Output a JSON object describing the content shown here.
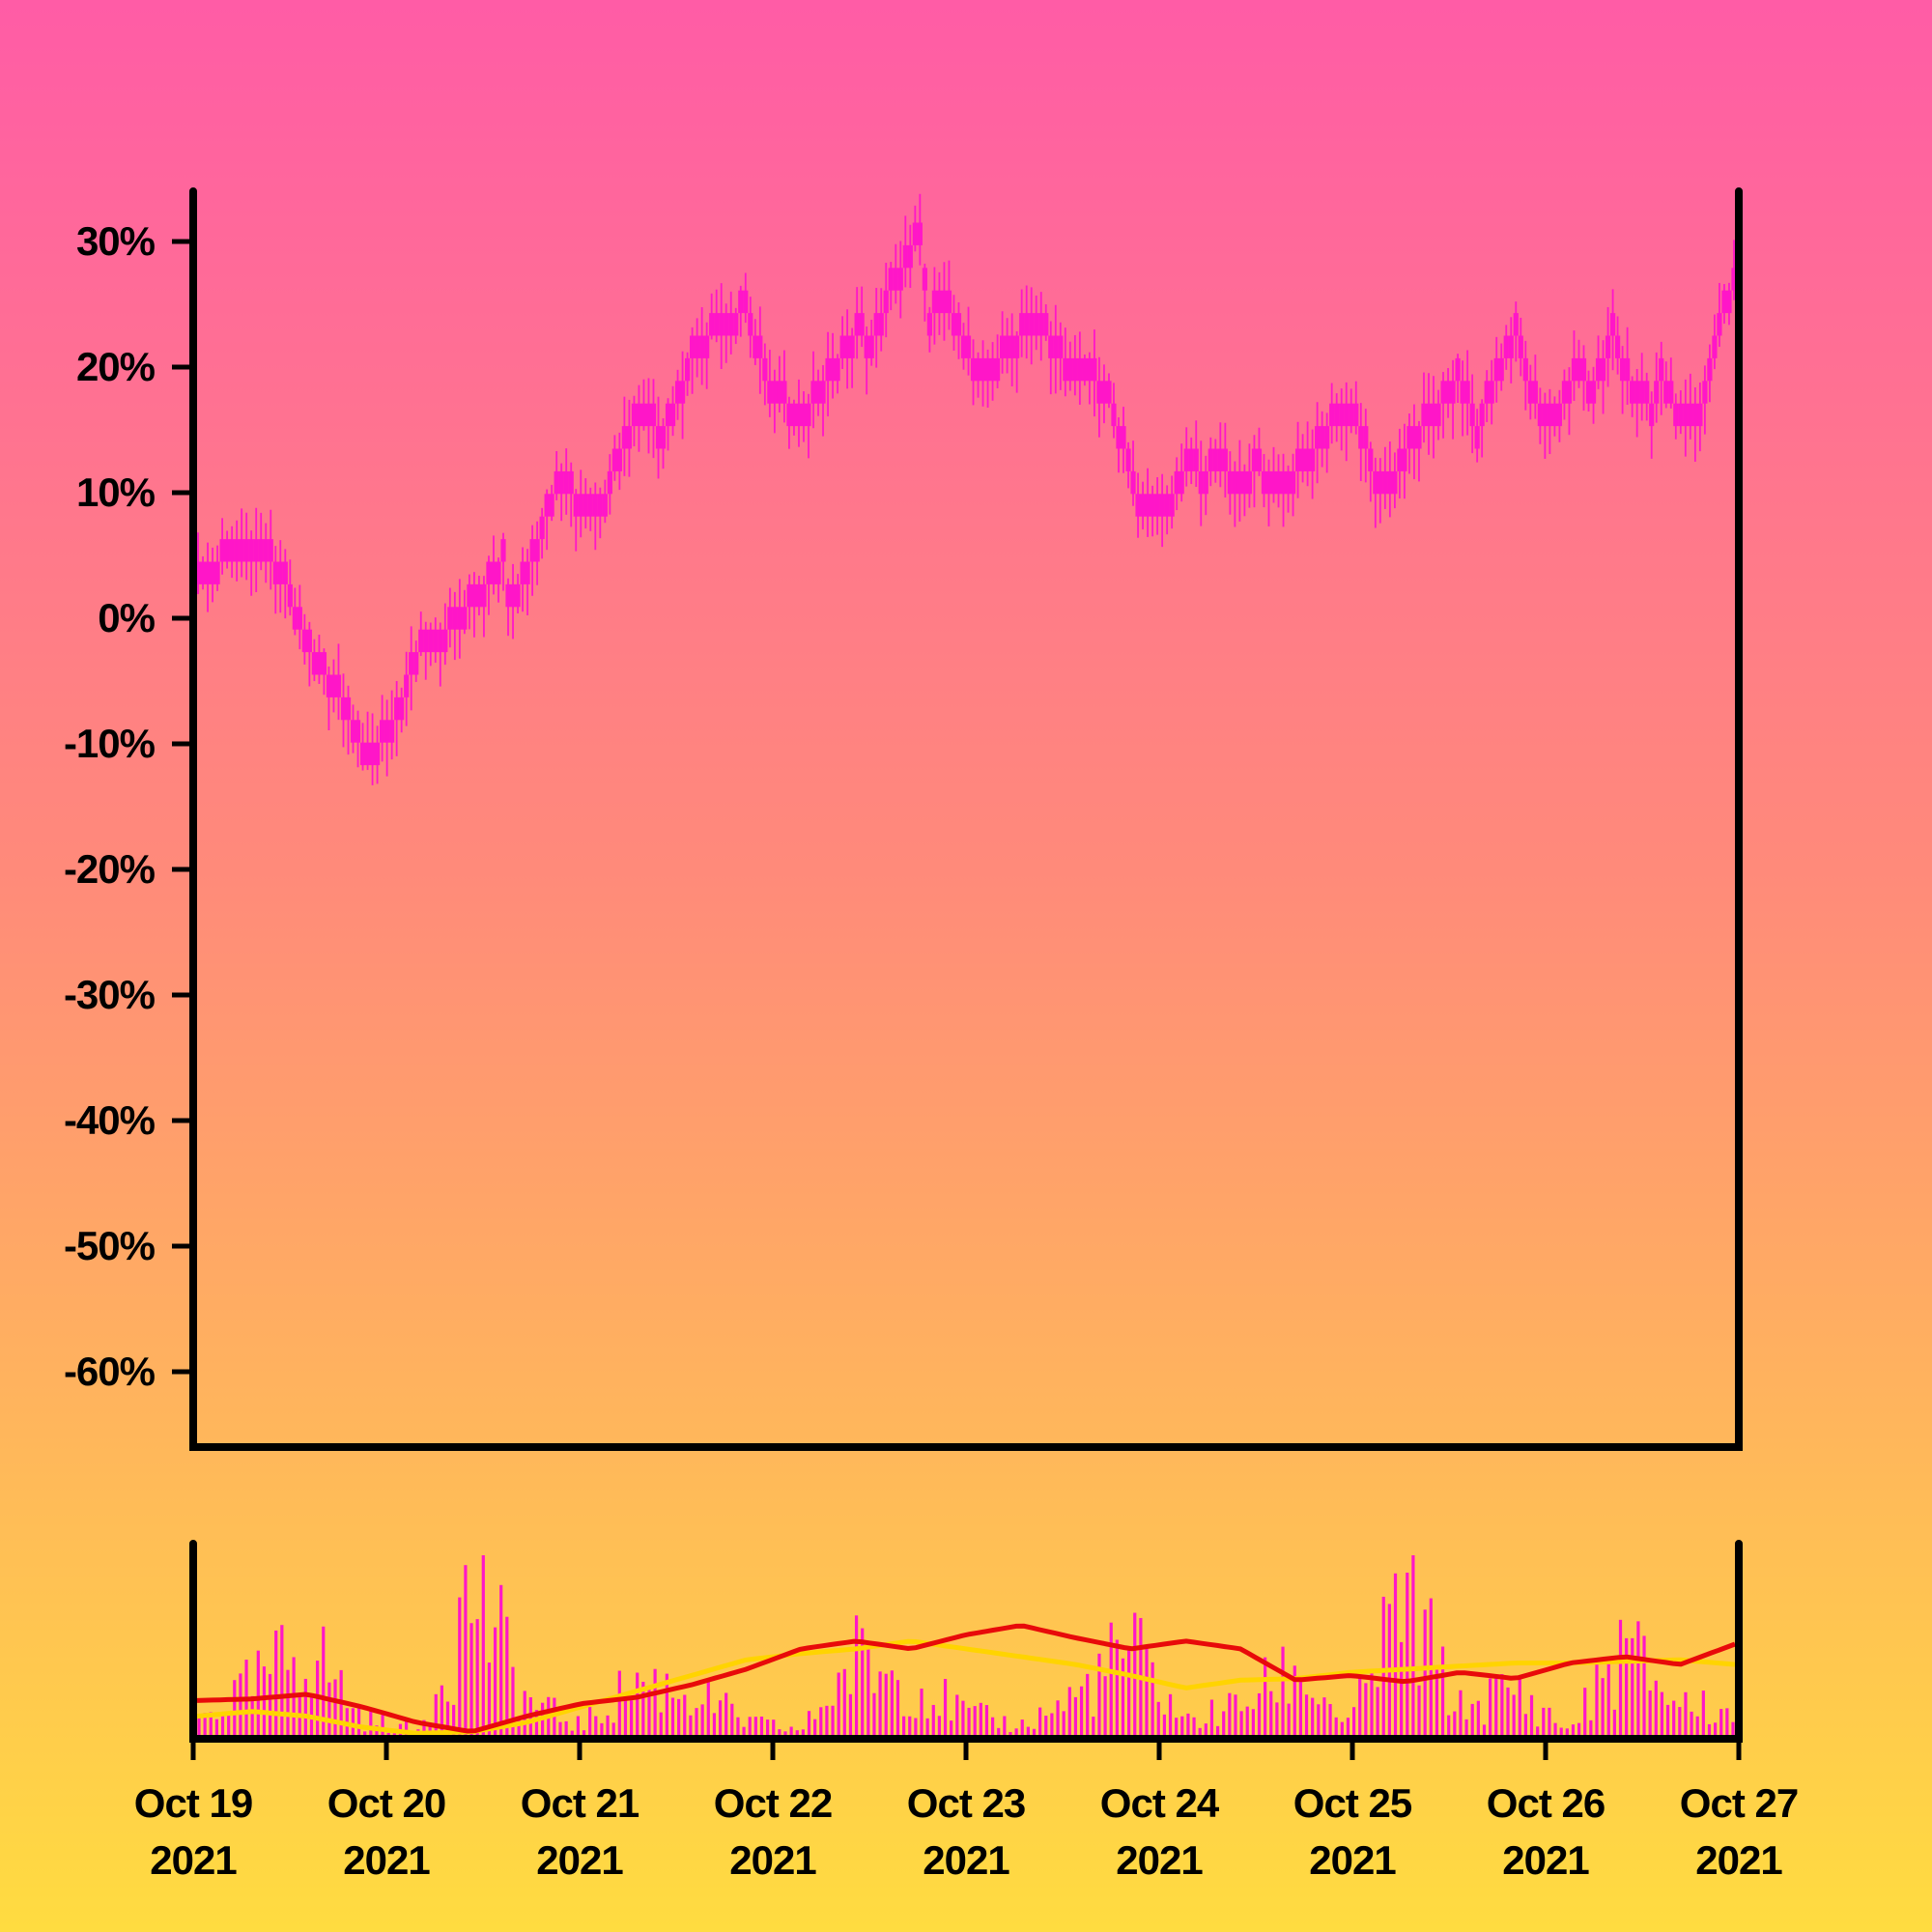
{
  "colors": {
    "candles": "#ff16c8",
    "volume_bars": "#ff16c8",
    "ma_fast": "#e80a0a",
    "ma_slow": "#ffd400",
    "axes": "#000000"
  },
  "chart_data": [
    {
      "type": "candlestick",
      "title": "",
      "ylabel": "",
      "y_tick_labels": [
        "30%",
        "20%",
        "10%",
        "0%",
        "-10%",
        "-20%",
        "-30%",
        "-40%",
        "-50%",
        "-60%"
      ],
      "y_ticks": [
        30,
        20,
        10,
        0,
        -10,
        -20,
        -30,
        -40,
        -50,
        -60
      ],
      "ylim": [
        -66,
        34
      ],
      "x_range": [
        "2021-10-19",
        "2021-10-27"
      ],
      "x_tick_labels": [
        "Oct 19 2021",
        "Oct 20 2021",
        "Oct 21 2021",
        "Oct 22 2021",
        "Oct 23 2021",
        "Oct 24 2021",
        "Oct 25 2021",
        "Oct 26 2021",
        "Oct 27 2021"
      ],
      "close_path": [
        {
          "x": 0.0,
          "y": 3
        },
        {
          "x": 0.2,
          "y": 5
        },
        {
          "x": 0.35,
          "y": 6
        },
        {
          "x": 0.45,
          "y": 4
        },
        {
          "x": 0.62,
          "y": -3
        },
        {
          "x": 0.75,
          "y": -6
        },
        {
          "x": 0.9,
          "y": -11
        },
        {
          "x": 1.05,
          "y": -8
        },
        {
          "x": 1.15,
          "y": -3
        },
        {
          "x": 1.3,
          "y": -1
        },
        {
          "x": 1.5,
          "y": 2
        },
        {
          "x": 1.6,
          "y": 5
        },
        {
          "x": 1.65,
          "y": 1
        },
        {
          "x": 1.8,
          "y": 7
        },
        {
          "x": 1.9,
          "y": 11
        },
        {
          "x": 1.95,
          "y": 11
        },
        {
          "x": 2.0,
          "y": 9
        },
        {
          "x": 2.1,
          "y": 8
        },
        {
          "x": 2.2,
          "y": 13
        },
        {
          "x": 2.3,
          "y": 16
        },
        {
          "x": 2.45,
          "y": 15
        },
        {
          "x": 2.6,
          "y": 22
        },
        {
          "x": 2.75,
          "y": 23
        },
        {
          "x": 2.85,
          "y": 25
        },
        {
          "x": 3.0,
          "y": 18
        },
        {
          "x": 3.15,
          "y": 16
        },
        {
          "x": 3.25,
          "y": 18
        },
        {
          "x": 3.35,
          "y": 21
        },
        {
          "x": 3.45,
          "y": 23
        },
        {
          "x": 3.5,
          "y": 21
        },
        {
          "x": 3.6,
          "y": 26
        },
        {
          "x": 3.7,
          "y": 29
        },
        {
          "x": 3.75,
          "y": 32
        },
        {
          "x": 3.8,
          "y": 24
        },
        {
          "x": 3.9,
          "y": 25
        },
        {
          "x": 4.0,
          "y": 21
        },
        {
          "x": 4.1,
          "y": 19
        },
        {
          "x": 4.25,
          "y": 22
        },
        {
          "x": 4.35,
          "y": 24
        },
        {
          "x": 4.45,
          "y": 22
        },
        {
          "x": 4.55,
          "y": 19
        },
        {
          "x": 4.65,
          "y": 20
        },
        {
          "x": 4.75,
          "y": 17
        },
        {
          "x": 4.9,
          "y": 9
        },
        {
          "x": 5.05,
          "y": 9
        },
        {
          "x": 5.15,
          "y": 13
        },
        {
          "x": 5.25,
          "y": 11
        },
        {
          "x": 5.3,
          "y": 14
        },
        {
          "x": 5.4,
          "y": 10
        },
        {
          "x": 5.5,
          "y": 12
        },
        {
          "x": 5.6,
          "y": 11
        },
        {
          "x": 5.75,
          "y": 12
        },
        {
          "x": 5.9,
          "y": 16
        },
        {
          "x": 6.0,
          "y": 17
        },
        {
          "x": 6.1,
          "y": 12
        },
        {
          "x": 6.2,
          "y": 10
        },
        {
          "x": 6.3,
          "y": 14
        },
        {
          "x": 6.45,
          "y": 17
        },
        {
          "x": 6.55,
          "y": 19
        },
        {
          "x": 6.65,
          "y": 15
        },
        {
          "x": 6.75,
          "y": 20
        },
        {
          "x": 6.85,
          "y": 23
        },
        {
          "x": 6.95,
          "y": 17
        },
        {
          "x": 7.05,
          "y": 16
        },
        {
          "x": 7.15,
          "y": 20
        },
        {
          "x": 7.25,
          "y": 18
        },
        {
          "x": 7.35,
          "y": 23
        },
        {
          "x": 7.45,
          "y": 18
        },
        {
          "x": 7.55,
          "y": 17
        },
        {
          "x": 7.6,
          "y": 19
        },
        {
          "x": 7.7,
          "y": 16
        },
        {
          "x": 7.8,
          "y": 17
        },
        {
          "x": 7.9,
          "y": 23
        },
        {
          "x": 8.0,
          "y": 29
        }
      ]
    },
    {
      "type": "bar",
      "title": "",
      "ylabel": "",
      "series": [
        {
          "name": "",
          "role": "volume",
          "relative_values": [
            0.12,
            0.32,
            0.58,
            0.12,
            0.05,
            0.92,
            0.22,
            0.08,
            0.35,
            0.28,
            0.1,
            0.05,
            0.48,
            0.35,
            0.15,
            0.08,
            0.25,
            0.55,
            0.1,
            0.2,
            0.42,
            0.08,
            0.85,
            0.18,
            0.3,
            0.05,
            0.55,
            0.22,
            0.15
          ]
        },
        {
          "name": "",
          "role": "ma_fast",
          "relative_values": [
            0.22,
            0.23,
            0.26,
            0.18,
            0.08,
            0.02,
            0.12,
            0.2,
            0.24,
            0.32,
            0.42,
            0.55,
            0.6,
            0.55,
            0.64,
            0.7,
            0.62,
            0.55,
            0.6,
            0.55,
            0.35,
            0.38,
            0.34,
            0.4,
            0.36,
            0.46,
            0.5,
            0.45,
            0.58
          ]
        },
        {
          "name": "",
          "role": "ma_slow",
          "relative_values": [
            0.12,
            0.15,
            0.12,
            0.05,
            0.01,
            0.02,
            0.08,
            0.18,
            0.28,
            0.38,
            0.48,
            0.52,
            0.55,
            0.6,
            0.55,
            0.5,
            0.45,
            0.38,
            0.3,
            0.35,
            0.36,
            0.4,
            0.42,
            0.44,
            0.46,
            0.46,
            0.47,
            0.48,
            0.45
          ]
        }
      ],
      "ylim": [
        0,
        1
      ]
    }
  ]
}
